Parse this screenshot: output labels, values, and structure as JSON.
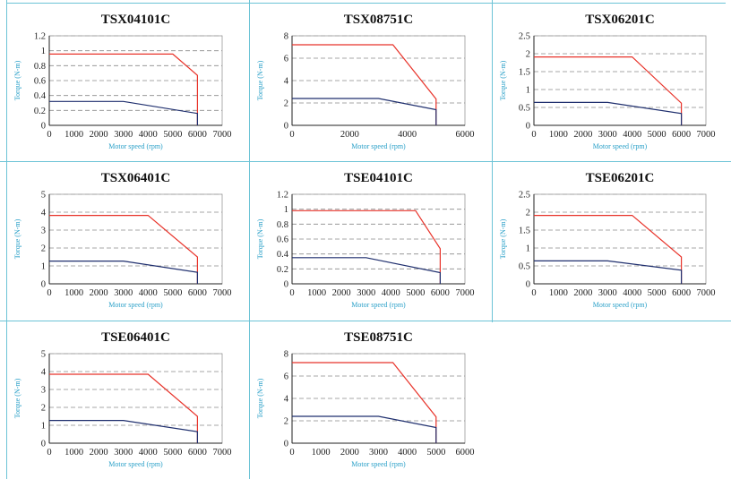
{
  "colors": {
    "peak": "#e8332a",
    "continuous": "#1f2f6e",
    "grid_dash": "#8a8a8a",
    "divider": "#6cc3d6",
    "label": "#2aa0c8"
  },
  "chart_data": [
    {
      "type": "line",
      "title": "TSX04101C",
      "xlabel": "Motor speed (rpm)",
      "ylabel": "Torque (N-m)",
      "xlim": [
        0,
        7000
      ],
      "ylim": [
        0,
        1.2
      ],
      "xticks": [
        "0",
        "1000",
        "2000",
        "3000",
        "4000",
        "5000",
        "6000",
        "7000"
      ],
      "yticks": [
        "0",
        "0.2",
        "0.4",
        "0.6",
        "0.8",
        "1",
        "1.2"
      ],
      "series": [
        {
          "role": "peak",
          "x": [
            0,
            5000,
            6000,
            6000
          ],
          "y": [
            0.955,
            0.955,
            0.67,
            0
          ]
        },
        {
          "role": "continuous",
          "x": [
            0,
            3000,
            6000,
            6000
          ],
          "y": [
            0.32,
            0.32,
            0.16,
            0
          ]
        }
      ]
    },
    {
      "type": "line",
      "title": "TSX08751C",
      "xlabel": "Motor speed (rpm)",
      "ylabel": "Torque (N-m)",
      "xlim": [
        0,
        6000
      ],
      "ylim": [
        0,
        8
      ],
      "xticks": [
        "0",
        "2000",
        "4000",
        "6000"
      ],
      "yticks": [
        "0",
        "2",
        "4",
        "6",
        "8"
      ],
      "series": [
        {
          "role": "peak",
          "x": [
            0,
            3500,
            5000,
            5000
          ],
          "y": [
            7.2,
            7.2,
            2.35,
            0
          ]
        },
        {
          "role": "continuous",
          "x": [
            0,
            3000,
            5000,
            5000
          ],
          "y": [
            2.4,
            2.4,
            1.4,
            0
          ]
        }
      ]
    },
    {
      "type": "line",
      "title": "TSX06201C",
      "xlabel": "Motor speed (rpm)",
      "ylabel": "Torque (N-m)",
      "xlim": [
        0,
        7000
      ],
      "ylim": [
        0,
        2.5
      ],
      "xticks": [
        "0",
        "1000",
        "2000",
        "3000",
        "4000",
        "5000",
        "6000",
        "7000"
      ],
      "yticks": [
        "0",
        "0.5",
        "1",
        "1.5",
        "2",
        "2.5"
      ],
      "series": [
        {
          "role": "peak",
          "x": [
            0,
            4000,
            6000,
            6000
          ],
          "y": [
            1.91,
            1.91,
            0.62,
            0
          ]
        },
        {
          "role": "continuous",
          "x": [
            0,
            3000,
            6000,
            6000
          ],
          "y": [
            0.64,
            0.64,
            0.33,
            0
          ]
        }
      ]
    },
    {
      "type": "line",
      "title": "TSX06401C",
      "xlabel": "Motor speed (rpm)",
      "ylabel": "Torque (N-m)",
      "xlim": [
        0,
        7000
      ],
      "ylim": [
        0,
        5
      ],
      "xticks": [
        "0",
        "1000",
        "2000",
        "3000",
        "4000",
        "5000",
        "6000",
        "7000"
      ],
      "yticks": [
        "0",
        "1",
        "2",
        "3",
        "4",
        "5"
      ],
      "series": [
        {
          "role": "peak",
          "x": [
            0,
            4000,
            6000,
            6000
          ],
          "y": [
            3.82,
            3.82,
            1.5,
            0
          ]
        },
        {
          "role": "continuous",
          "x": [
            0,
            3000,
            6000,
            6000
          ],
          "y": [
            1.27,
            1.27,
            0.64,
            0
          ]
        }
      ]
    },
    {
      "type": "line",
      "title": "TSE04101C",
      "xlabel": "Motor speed (rpm)",
      "ylabel": "Torque (N-m)",
      "xlim": [
        0,
        7000
      ],
      "ylim": [
        0,
        1.2
      ],
      "xticks": [
        "0",
        "1000",
        "2000",
        "3000",
        "4000",
        "5000",
        "6000",
        "7000"
      ],
      "yticks": [
        "0",
        "0.2",
        "0.4",
        "0.6",
        "0.8",
        "1",
        "1.2"
      ],
      "series": [
        {
          "role": "peak",
          "x": [
            0,
            5000,
            6000,
            6000
          ],
          "y": [
            0.98,
            0.98,
            0.47,
            0
          ]
        },
        {
          "role": "continuous",
          "x": [
            0,
            3000,
            6000,
            6000
          ],
          "y": [
            0.35,
            0.35,
            0.15,
            0
          ]
        }
      ]
    },
    {
      "type": "line",
      "title": "TSE06201C",
      "xlabel": "Motor speed (rpm)",
      "ylabel": "Torque (N-m)",
      "xlim": [
        0,
        7000
      ],
      "ylim": [
        0,
        2.5
      ],
      "xticks": [
        "0",
        "1000",
        "2000",
        "3000",
        "4000",
        "5000",
        "6000",
        "7000"
      ],
      "yticks": [
        "0",
        "0.5",
        "1",
        "1.5",
        "2",
        "2.5"
      ],
      "series": [
        {
          "role": "peak",
          "x": [
            0,
            4000,
            6000,
            6000
          ],
          "y": [
            1.91,
            1.91,
            0.75,
            0
          ]
        },
        {
          "role": "continuous",
          "x": [
            0,
            3000,
            6000,
            6000
          ],
          "y": [
            0.64,
            0.64,
            0.38,
            0
          ]
        }
      ]
    },
    {
      "type": "line",
      "title": "TSE06401C",
      "xlabel": "Motor speed (rpm)",
      "ylabel": "Torque (N-m)",
      "xlim": [
        0,
        7000
      ],
      "ylim": [
        0,
        5
      ],
      "xticks": [
        "0",
        "1000",
        "2000",
        "3000",
        "4000",
        "5000",
        "6000",
        "7000"
      ],
      "yticks": [
        "0",
        "1",
        "2",
        "3",
        "4",
        "5"
      ],
      "series": [
        {
          "role": "peak",
          "x": [
            0,
            4000,
            6000,
            6000
          ],
          "y": [
            3.85,
            3.85,
            1.5,
            0
          ]
        },
        {
          "role": "continuous",
          "x": [
            0,
            3000,
            6000,
            6000
          ],
          "y": [
            1.27,
            1.27,
            0.64,
            0
          ]
        }
      ]
    },
    {
      "type": "line",
      "title": "TSE08751C",
      "xlabel": "Motor speed (rpm)",
      "ylabel": "Torque (N-m)",
      "xlim": [
        0,
        6000
      ],
      "ylim": [
        0,
        8
      ],
      "xticks": [
        "0",
        "1000",
        "2000",
        "3000",
        "4000",
        "5000",
        "6000"
      ],
      "yticks": [
        "0",
        "2",
        "4",
        "6",
        "8"
      ],
      "series": [
        {
          "role": "peak",
          "x": [
            0,
            3500,
            5000,
            5000
          ],
          "y": [
            7.2,
            7.2,
            2.35,
            0
          ]
        },
        {
          "role": "continuous",
          "x": [
            0,
            3000,
            5000,
            5000
          ],
          "y": [
            2.4,
            2.4,
            1.4,
            0
          ]
        }
      ]
    }
  ]
}
